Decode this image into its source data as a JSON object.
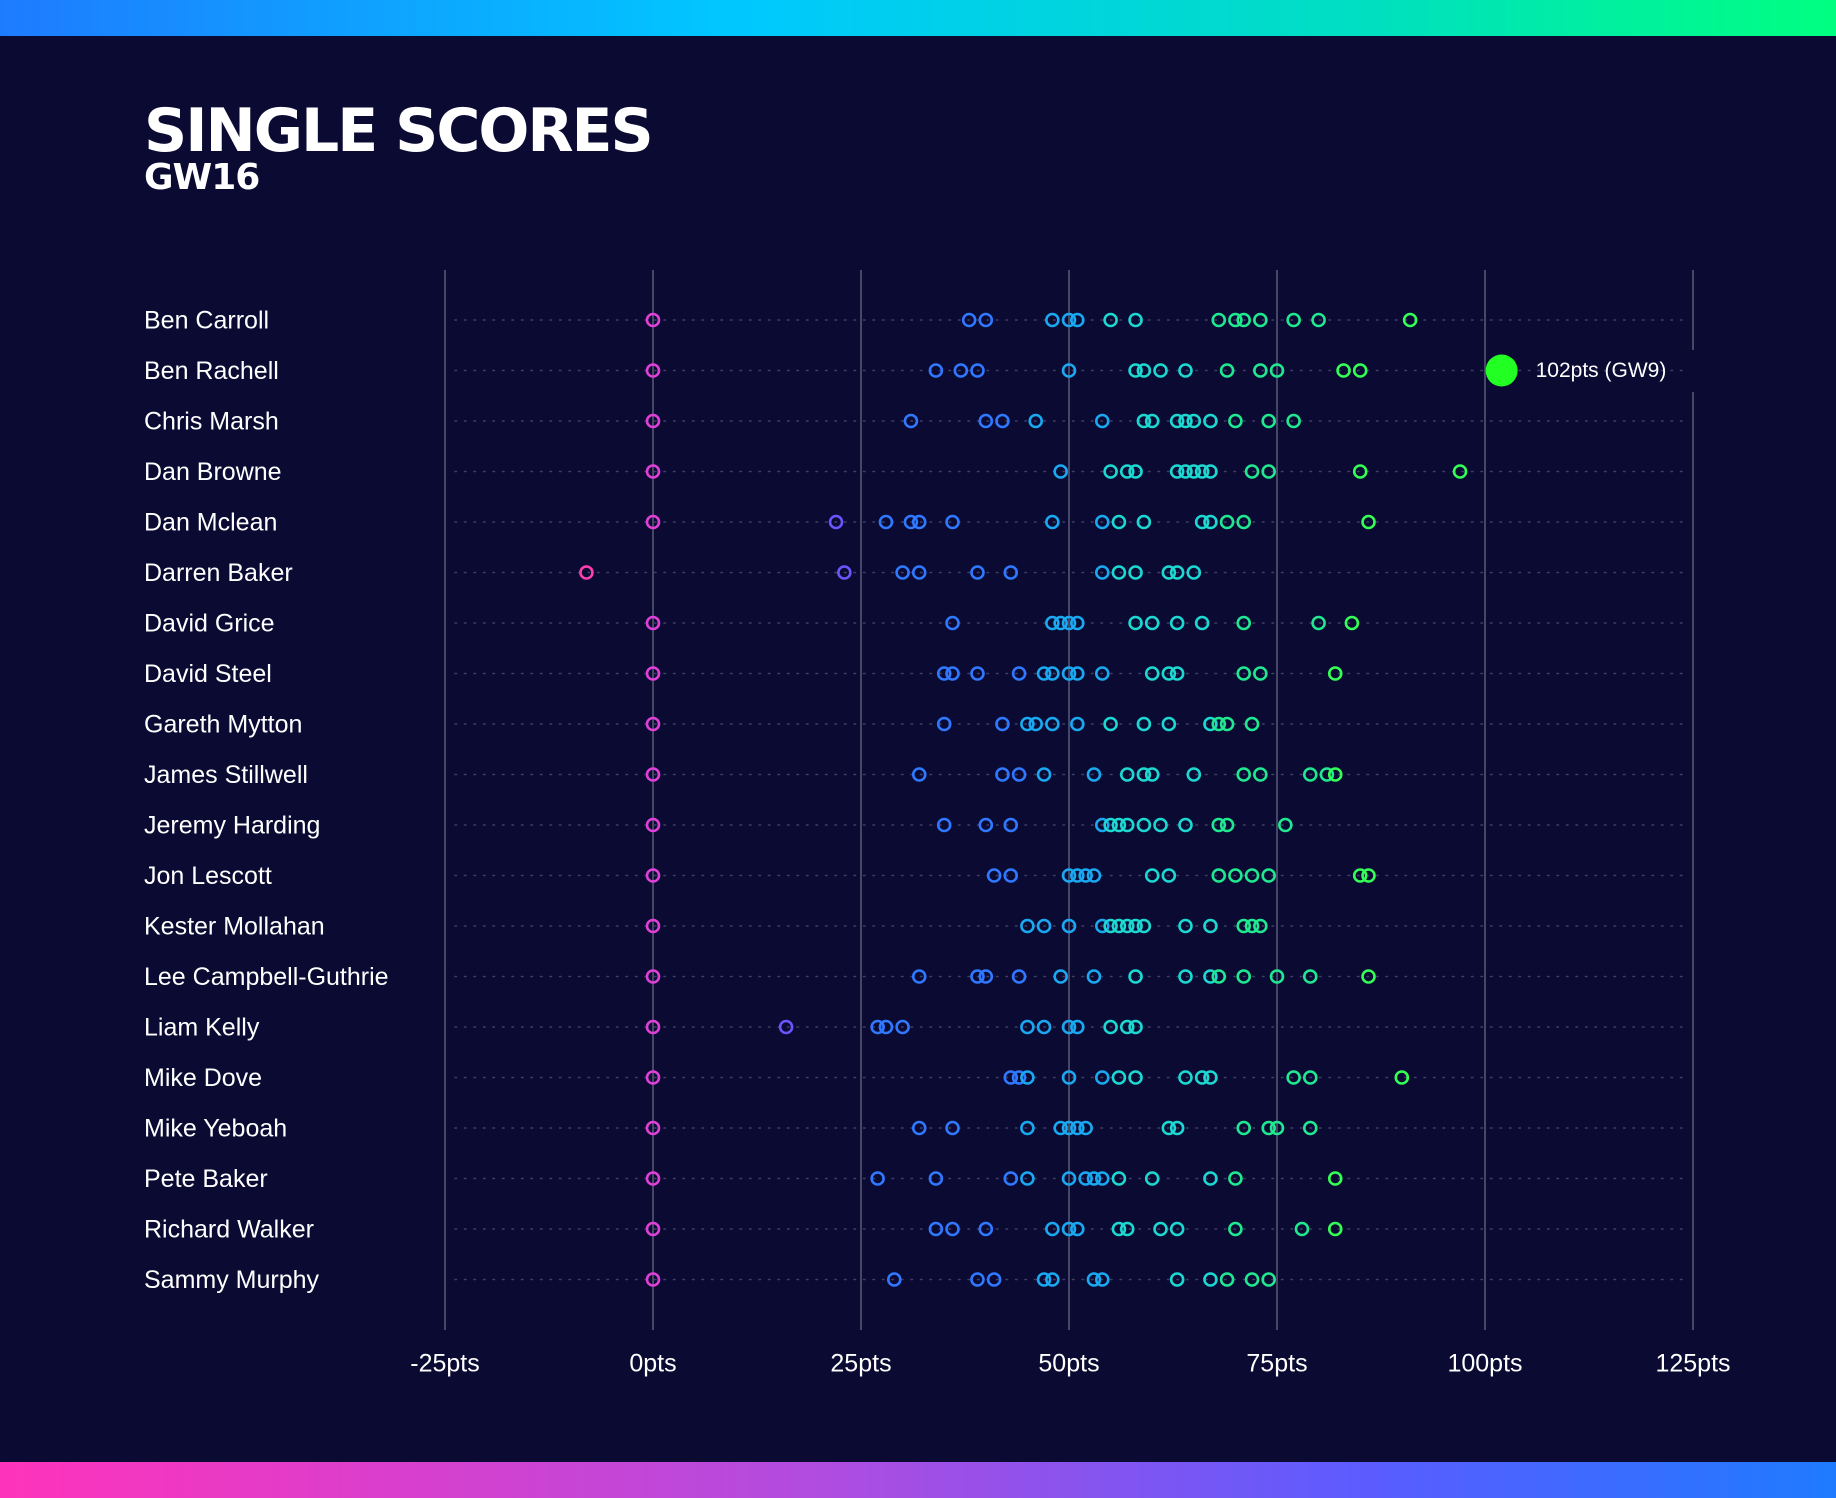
{
  "header": {
    "title": "SINGLE SCORES",
    "subtitle": "GW16"
  },
  "colors": {
    "background": "#0a0a33",
    "negative_low": "#ff3fb0",
    "zero": "#e040d8",
    "low": "#6a55ff",
    "mid_low": "#2f78ff",
    "mid": "#1aa8f0",
    "mid_high": "#1cd8d0",
    "high": "#20e890",
    "top": "#33ff55",
    "highlight": "#22ff22"
  },
  "chart_data": {
    "type": "scatter",
    "title": "SINGLE SCORES",
    "subtitle": "GW16",
    "xlim": [
      -25,
      125
    ],
    "x_ticks": [
      -25,
      0,
      25,
      50,
      75,
      100,
      125
    ],
    "x_tick_labels": [
      "-25pts",
      "0pts",
      "25pts",
      "50pts",
      "75pts",
      "100pts",
      "125pts"
    ],
    "grid": "vertical",
    "series": [
      {
        "name": "Ben Carroll",
        "values": [
          0,
          38,
          40,
          48,
          50,
          51,
          55,
          58,
          68,
          70,
          71,
          73,
          77,
          80,
          91
        ]
      },
      {
        "name": "Ben Rachell",
        "values": [
          0,
          34,
          37,
          39,
          50,
          58,
          59,
          61,
          64,
          69,
          73,
          75,
          83,
          85,
          102
        ]
      },
      {
        "name": "Chris Marsh",
        "values": [
          0,
          31,
          40,
          42,
          46,
          54,
          59,
          60,
          63,
          64,
          65,
          67,
          70,
          74,
          77
        ]
      },
      {
        "name": "Dan Browne",
        "values": [
          0,
          49,
          55,
          57,
          58,
          63,
          64,
          65,
          66,
          67,
          72,
          74,
          85,
          97
        ]
      },
      {
        "name": "Dan Mclean",
        "values": [
          0,
          22,
          28,
          31,
          32,
          36,
          48,
          54,
          56,
          59,
          66,
          67,
          69,
          71,
          86
        ]
      },
      {
        "name": "Darren Baker",
        "values": [
          -8,
          23,
          30,
          32,
          39,
          43,
          54,
          56,
          58,
          62,
          63,
          65
        ]
      },
      {
        "name": "David Grice",
        "values": [
          0,
          36,
          48,
          49,
          50,
          51,
          58,
          60,
          63,
          66,
          71,
          80,
          84
        ]
      },
      {
        "name": "David Steel",
        "values": [
          0,
          35,
          36,
          39,
          44,
          47,
          48,
          50,
          51,
          54,
          60,
          62,
          63,
          71,
          73,
          82
        ]
      },
      {
        "name": "Gareth Mytton",
        "values": [
          0,
          35,
          42,
          45,
          46,
          48,
          51,
          55,
          59,
          62,
          67,
          68,
          69,
          72
        ]
      },
      {
        "name": "James Stillwell",
        "values": [
          0,
          32,
          42,
          44,
          47,
          53,
          57,
          59,
          60,
          65,
          71,
          73,
          79,
          81,
          82
        ]
      },
      {
        "name": "Jeremy Harding",
        "values": [
          0,
          35,
          40,
          43,
          54,
          55,
          56,
          57,
          59,
          61,
          64,
          68,
          69,
          76
        ]
      },
      {
        "name": "Jon Lescott",
        "values": [
          0,
          41,
          43,
          50,
          51,
          52,
          53,
          60,
          62,
          68,
          70,
          72,
          74,
          85,
          86
        ]
      },
      {
        "name": "Kester Mollahan",
        "values": [
          0,
          45,
          47,
          50,
          54,
          55,
          56,
          57,
          58,
          59,
          64,
          67,
          71,
          72,
          73
        ]
      },
      {
        "name": "Lee Campbell-Guthrie",
        "values": [
          0,
          32,
          39,
          40,
          44,
          49,
          53,
          58,
          64,
          67,
          68,
          71,
          75,
          79,
          86
        ]
      },
      {
        "name": "Liam Kelly",
        "values": [
          0,
          16,
          27,
          28,
          30,
          45,
          47,
          50,
          51,
          55,
          57,
          58
        ]
      },
      {
        "name": "Mike Dove",
        "values": [
          0,
          43,
          44,
          45,
          50,
          54,
          56,
          58,
          64,
          66,
          67,
          77,
          79,
          90
        ]
      },
      {
        "name": "Mike Yeboah",
        "values": [
          0,
          32,
          36,
          45,
          49,
          50,
          51,
          52,
          62,
          63,
          71,
          74,
          75,
          79
        ]
      },
      {
        "name": "Pete Baker",
        "values": [
          0,
          27,
          34,
          43,
          45,
          50,
          52,
          53,
          54,
          56,
          60,
          67,
          70,
          82
        ]
      },
      {
        "name": "Richard Walker",
        "values": [
          0,
          34,
          36,
          40,
          48,
          50,
          51,
          56,
          57,
          61,
          63,
          70,
          78,
          82
        ]
      },
      {
        "name": "Sammy Murphy",
        "values": [
          0,
          29,
          39,
          41,
          47,
          48,
          53,
          54,
          63,
          67,
          69,
          72,
          74
        ]
      }
    ],
    "highlight": {
      "player": "Ben Rachell",
      "value": 102,
      "label": "102pts (GW9)"
    }
  }
}
